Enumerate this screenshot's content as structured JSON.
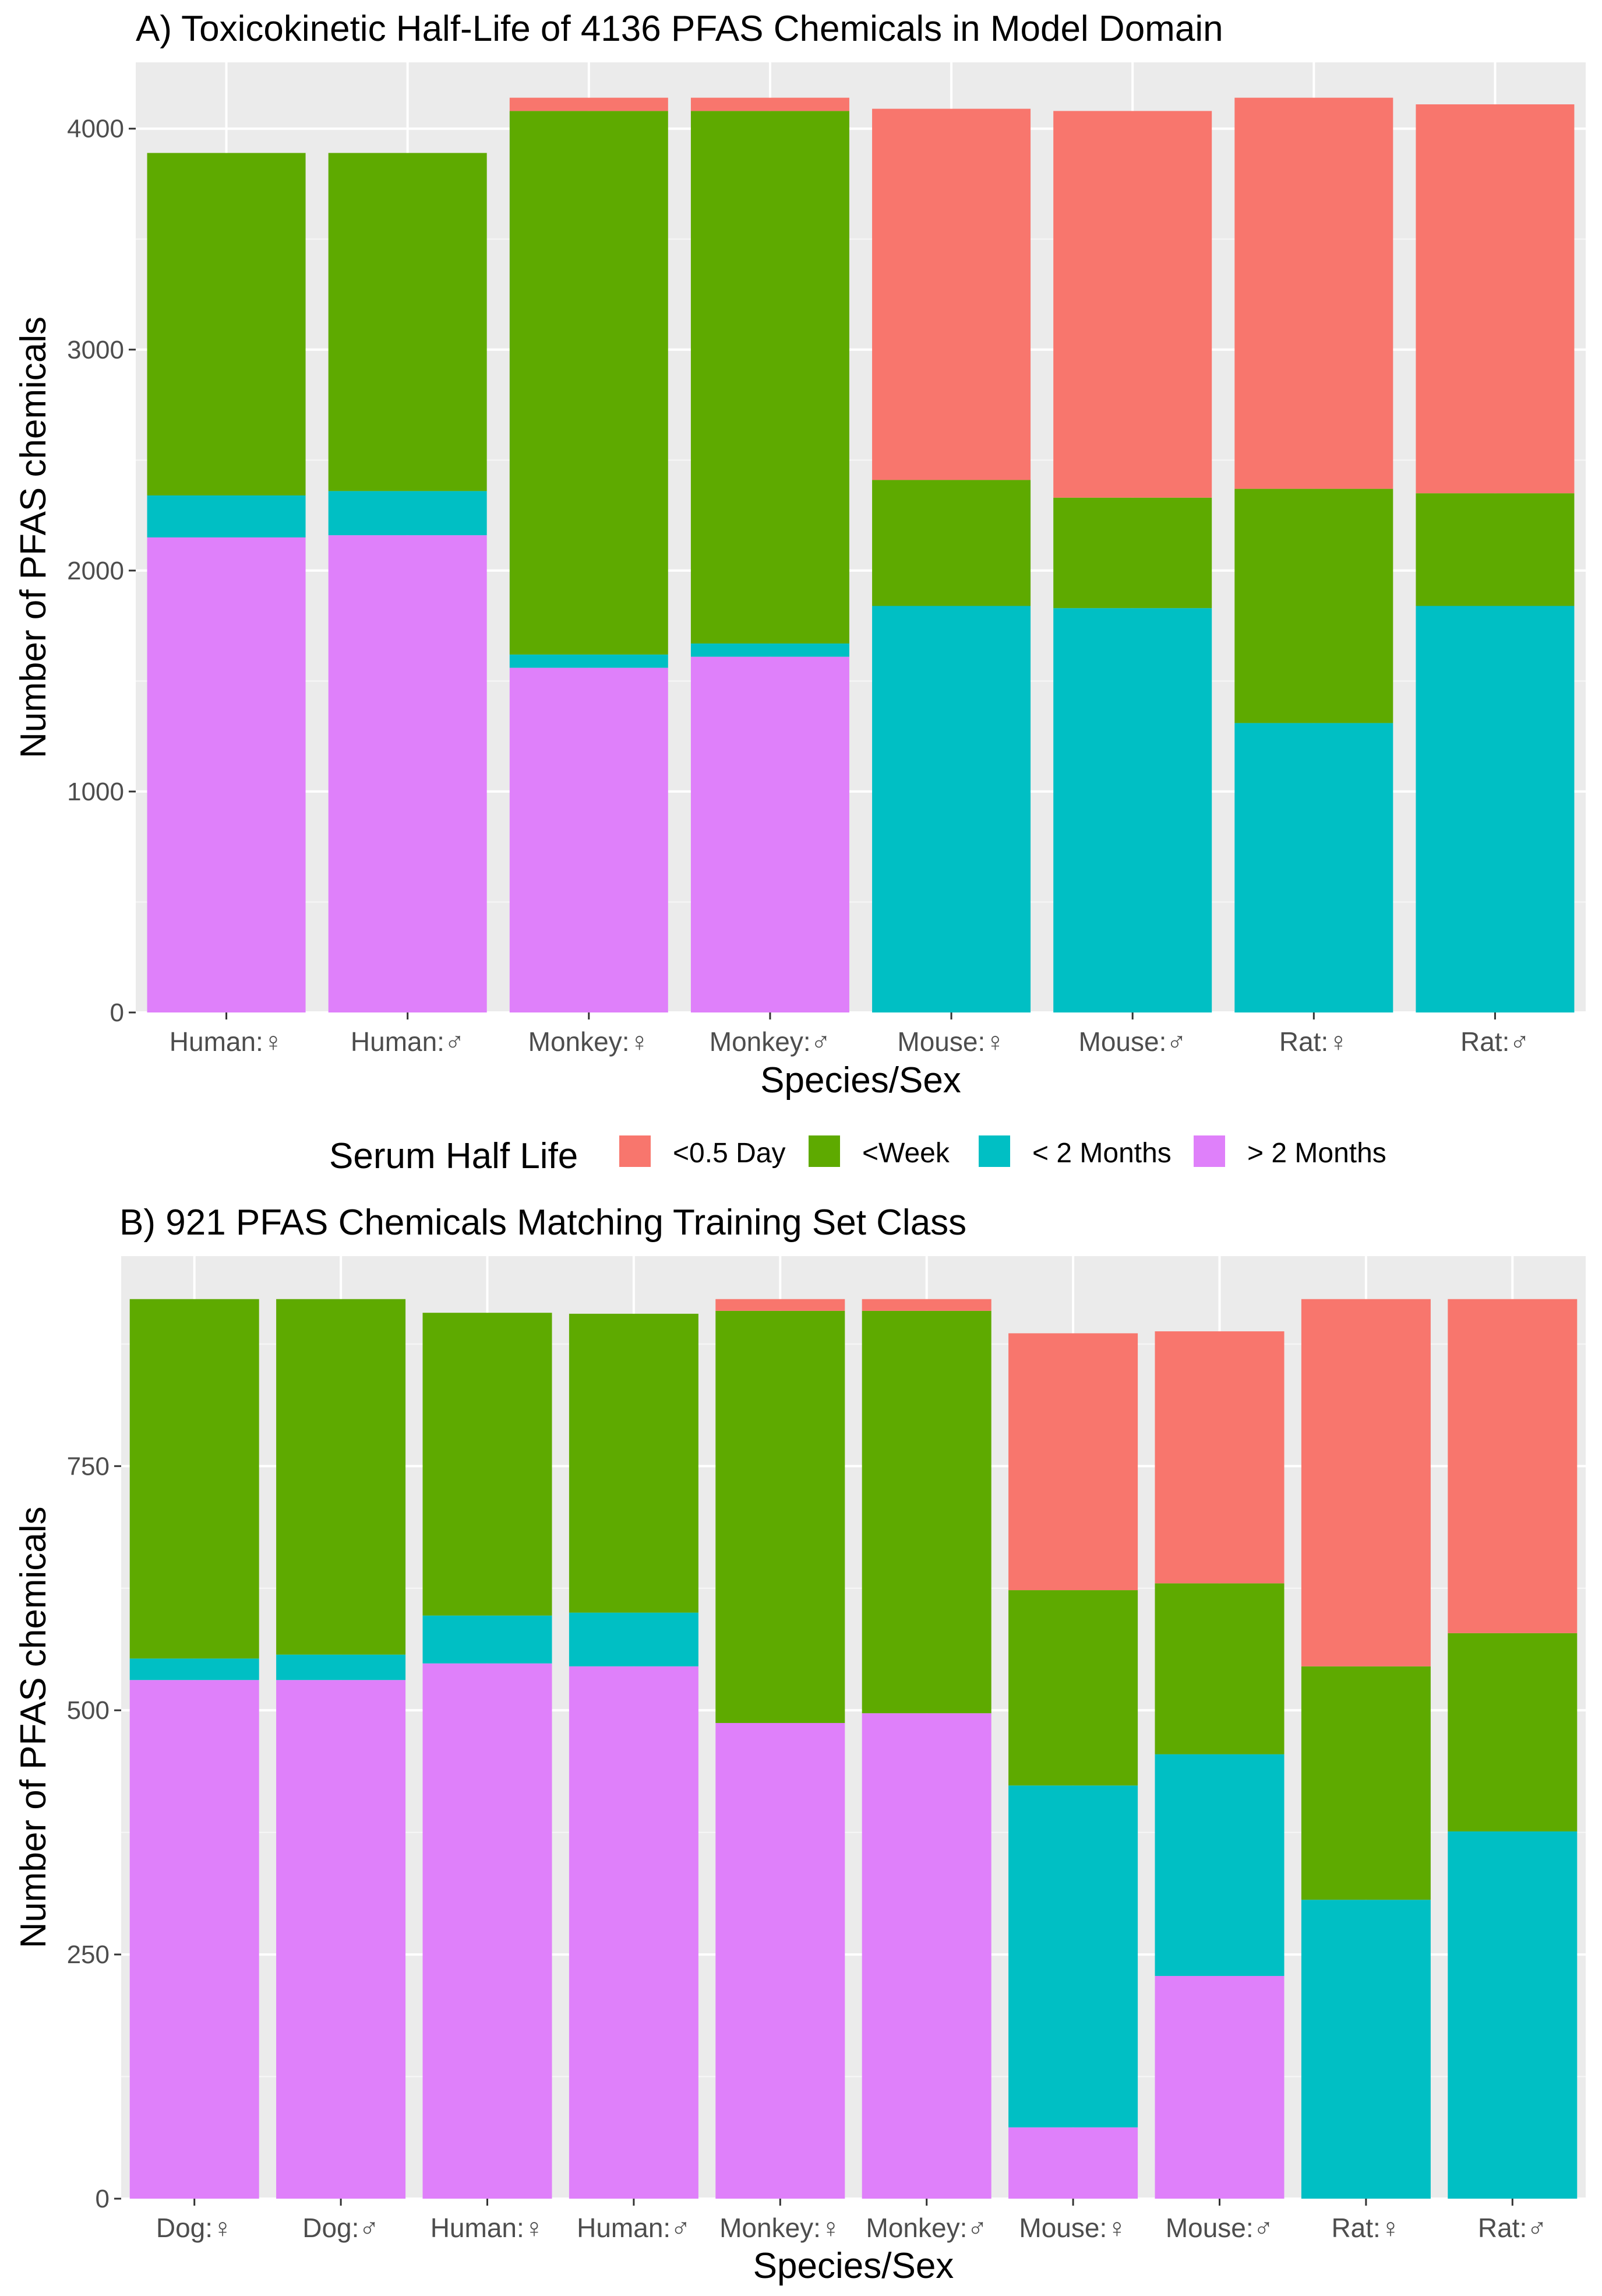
{
  "legend": {
    "title": "Serum Half Life",
    "items": [
      {
        "label": "<0.5 Day",
        "color": "#F8766D"
      },
      {
        "label": "<Week",
        "color": "#5EAA00"
      },
      {
        "label": "< 2 Months",
        "color": "#00BFC4"
      },
      {
        "label": "> 2 Months",
        "color": "#DF80FA"
      }
    ]
  },
  "chart_data": [
    {
      "type": "bar",
      "stacked": true,
      "title": "A) Toxicokinetic Half-Life of 4136 PFAS Chemicals in Model Domain",
      "xlabel": "Species/Sex",
      "ylabel": "Number of PFAS chemicals",
      "ylim": [
        0,
        4300
      ],
      "yticks": [
        0,
        1000,
        2000,
        3000,
        4000
      ],
      "categories": [
        "Human:♀",
        "Human:♂",
        "Monkey:♀",
        "Monkey:♂",
        "Mouse:♀",
        "Mouse:♂",
        "Rat:♀",
        "Rat:♂"
      ],
      "series": [
        {
          "name": "> 2 Months",
          "color": "#DF80FA",
          "values": [
            2150,
            2160,
            1560,
            1610,
            0,
            0,
            0,
            0
          ]
        },
        {
          "name": "< 2 Months",
          "color": "#00BFC4",
          "values": [
            190,
            200,
            60,
            60,
            1840,
            1830,
            1310,
            1840
          ]
        },
        {
          "name": "<Week",
          "color": "#5EAA00",
          "values": [
            1550,
            1530,
            2460,
            2410,
            570,
            500,
            1060,
            510
          ]
        },
        {
          "name": "<0.5 Day",
          "color": "#F8766D",
          "values": [
            0,
            0,
            60,
            60,
            1680,
            1750,
            1770,
            1760
          ]
        }
      ]
    },
    {
      "type": "bar",
      "stacked": true,
      "title": "B) 921 PFAS Chemicals Matching Training Set Class",
      "xlabel": "Species/Sex",
      "ylabel": "Number of PFAS chemicals",
      "ylim": [
        0,
        965
      ],
      "yticks": [
        0,
        250,
        500,
        750
      ],
      "categories": [
        "Dog:♀",
        "Dog:♂",
        "Human:♀",
        "Human:♂",
        "Monkey:♀",
        "Monkey:♂",
        "Mouse:♀",
        "Mouse:♂",
        "Rat:♀",
        "Rat:♂"
      ],
      "series": [
        {
          "name": "> 2 Months",
          "color": "#DF80FA",
          "values": [
            531,
            531,
            548,
            545,
            487,
            497,
            73,
            228,
            0,
            0
          ]
        },
        {
          "name": "< 2 Months",
          "color": "#00BFC4",
          "values": [
            22,
            26,
            49,
            55,
            0,
            0,
            350,
            227,
            306,
            376
          ]
        },
        {
          "name": "<Week",
          "color": "#5EAA00",
          "values": [
            368,
            364,
            310,
            306,
            422,
            412,
            200,
            175,
            239,
            203
          ]
        },
        {
          "name": "<0.5 Day",
          "color": "#F8766D",
          "values": [
            0,
            0,
            0,
            0,
            12,
            12,
            263,
            258,
            376,
            342
          ]
        }
      ]
    }
  ]
}
